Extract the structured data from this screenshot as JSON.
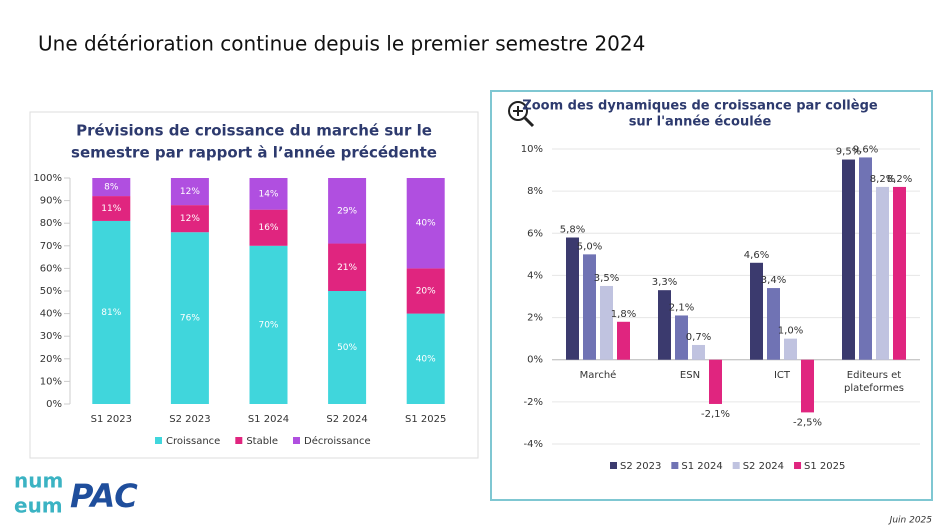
{
  "title": "Une détérioration continue depuis le premier semestre 2024",
  "footer": "Juin 2025",
  "logos": {
    "numeum": [
      "num",
      "eum"
    ],
    "pac": "PAC"
  },
  "chart_data": [
    {
      "type": "stacked_bar",
      "title": [
        "Prévisions de croissance du marché sur le",
        "semestre par rapport à l’année précédente"
      ],
      "categories": [
        "S1 2023",
        "S2 2023",
        "S1 2024",
        "S2 2024",
        "S1 2025"
      ],
      "series": [
        {
          "name": "Croissance",
          "color": "#40d6dc",
          "values": [
            81,
            76,
            70,
            50,
            40
          ],
          "value_labels": [
            "81%",
            "76%",
            "70%",
            "50%",
            "40%"
          ]
        },
        {
          "name": "Stable",
          "color": "#e0257f",
          "values": [
            11,
            12,
            16,
            21,
            20
          ],
          "value_labels": [
            "11%",
            "12%",
            "16%",
            "21%",
            "20%"
          ]
        },
        {
          "name": "Décroissance",
          "color": "#b04fe0",
          "values": [
            8,
            12,
            14,
            29,
            40
          ],
          "value_labels": [
            "8%",
            "12%",
            "14%",
            "29%",
            "40%"
          ]
        }
      ],
      "ylim": [
        0,
        100
      ],
      "yticks": [
        {
          "value": 0,
          "label": "0%"
        },
        {
          "value": 10,
          "label": "10%"
        },
        {
          "value": 20,
          "label": "20%"
        },
        {
          "value": 30,
          "label": "30%"
        },
        {
          "value": 40,
          "label": "40%"
        },
        {
          "value": 50,
          "label": "50%"
        },
        {
          "value": 60,
          "label": "60%"
        },
        {
          "value": 70,
          "label": "70%"
        },
        {
          "value": 80,
          "label": "80%"
        },
        {
          "value": 90,
          "label": "90%"
        },
        {
          "value": 100,
          "label": "100%"
        }
      ],
      "legend": "bottom"
    },
    {
      "type": "grouped_bar",
      "title": [
        "Zoom des dynamiques de croissance par collège",
        "sur l'année écoulée"
      ],
      "categories": [
        "Marché",
        "ESN",
        "ICT",
        "Editeurs et plateformes"
      ],
      "series": [
        {
          "name": "S2 2023",
          "color": "#3b3a6e",
          "values": [
            5.8,
            3.3,
            4.6,
            9.5
          ],
          "value_labels": [
            "5,8%",
            "3,3%",
            "4,6%",
            "9,5%"
          ]
        },
        {
          "name": "S1 2024",
          "color": "#7073b4",
          "values": [
            5.0,
            2.1,
            3.4,
            9.6
          ],
          "value_labels": [
            "5,0%",
            "2,1%",
            "3,4%",
            "9,6%"
          ]
        },
        {
          "name": "S2 2024",
          "color": "#c0c3e0",
          "values": [
            3.5,
            0.7,
            1.0,
            8.2
          ],
          "value_labels": [
            "3,5%",
            "0,7%",
            "1,0%",
            "8,2%"
          ]
        },
        {
          "name": "S1 2025",
          "color": "#e0257f",
          "values": [
            1.8,
            -2.1,
            -2.5,
            8.2
          ],
          "value_labels": [
            "1,8%",
            "-2,1%",
            "-2,5%",
            "8,2%"
          ]
        }
      ],
      "ylim": [
        -4,
        10
      ],
      "yticks": [
        {
          "value": -4,
          "label": "-4%"
        },
        {
          "value": -2,
          "label": "-2%"
        },
        {
          "value": 0,
          "label": "0%"
        },
        {
          "value": 2,
          "label": "2%"
        },
        {
          "value": 4,
          "label": "4%"
        },
        {
          "value": 6,
          "label": "6%"
        },
        {
          "value": 8,
          "label": "8%"
        },
        {
          "value": 10,
          "label": "10%"
        }
      ],
      "grid": true,
      "legend": "bottom"
    }
  ]
}
